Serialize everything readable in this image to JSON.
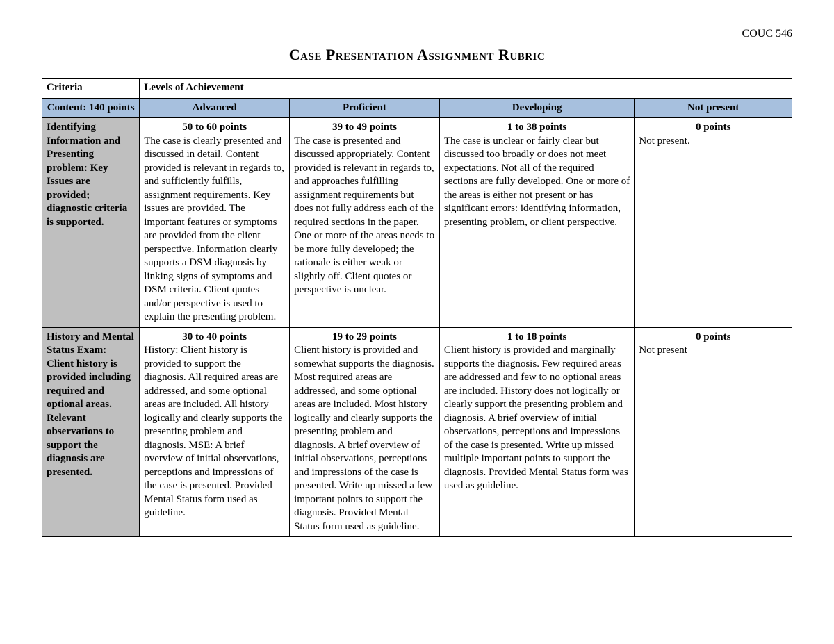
{
  "course_code": "COUC 546",
  "title": "Case Presentation Assignment Rubric",
  "colors": {
    "section_header_bg": "#a7c0de",
    "row_label_bg": "#bfbfbf",
    "border": "#000000",
    "text": "#000000",
    "background": "#ffffff"
  },
  "typography": {
    "font_family": "Times New Roman",
    "title_fontsize": 22,
    "body_fontsize": 15,
    "title_variant": "small-caps"
  },
  "headers": {
    "criteria": "Criteria",
    "levels": "Levels of Achievement"
  },
  "section": {
    "label": "Content: 140 points",
    "levels": [
      "Advanced",
      "Proficient",
      "Developing",
      "Not present"
    ]
  },
  "rows": [
    {
      "label": "Identifying Information and Presenting problem: Key Issues are provided; diagnostic criteria is supported.",
      "cells": [
        {
          "points": "50 to 60 points",
          "body": "The case is clearly presented and discussed in detail. Content provided is relevant in regards to, and sufficiently fulfills, assignment requirements. Key issues are provided. The important features or symptoms are provided from the client perspective.  Information clearly supports a DSM diagnosis by linking signs of symptoms and DSM criteria. Client quotes and/or perspective is used to explain the presenting problem."
        },
        {
          "points": "39 to 49 points",
          "body": "The case is presented and discussed appropriately. Content provided is relevant in regards to, and approaches fulfilling assignment requirements but does not fully address each of the required sections in the paper. One or more of the areas needs to be more fully developed; the rationale is either weak or slightly off.  Client quotes or perspective is unclear."
        },
        {
          "points": "1 to 38 points",
          "body": "The case is unclear or fairly clear but discussed too broadly or does not meet expectations. Not all of the required sections are fully developed. One or more of the areas is either not present or has significant errors: identifying information, presenting problem, or client perspective."
        },
        {
          "points": "0 points",
          "body": "Not present."
        }
      ]
    },
    {
      "label": "History and Mental Status Exam: Client history is provided including required and optional areas. Relevant observations to support the diagnosis are presented.",
      "cells": [
        {
          "points": "30 to 40 points",
          "body": "History: Client history is provided to support the diagnosis.  All required areas are addressed, and some optional areas are included. All history logically and clearly supports the presenting problem and diagnosis.  MSE: A brief overview of initial observations, perceptions and impressions of the case is presented.  Provided Mental Status form used as guideline."
        },
        {
          "points": "19 to 29 points",
          "body": "Client history is provided and somewhat supports the diagnosis.  Most required areas are addressed, and some optional areas are included. Most history logically and clearly supports the presenting problem and diagnosis.\nA brief overview of initial observations, perceptions and impressions of the case is presented.  Write up missed a few important points to support the diagnosis. Provided Mental Status form used as guideline."
        },
        {
          "points": "1 to 18 points",
          "body": "Client history is provided and marginally supports the diagnosis. Few required areas are addressed and few to no optional areas are included. History does not logically or clearly support the presenting problem and diagnosis.\nA brief overview of initial observations, perceptions and impressions of the case is presented.  Write up missed multiple important points to support the diagnosis. Provided Mental Status form was used as guideline."
        },
        {
          "points": "0 points",
          "body": "Not present"
        }
      ]
    }
  ]
}
